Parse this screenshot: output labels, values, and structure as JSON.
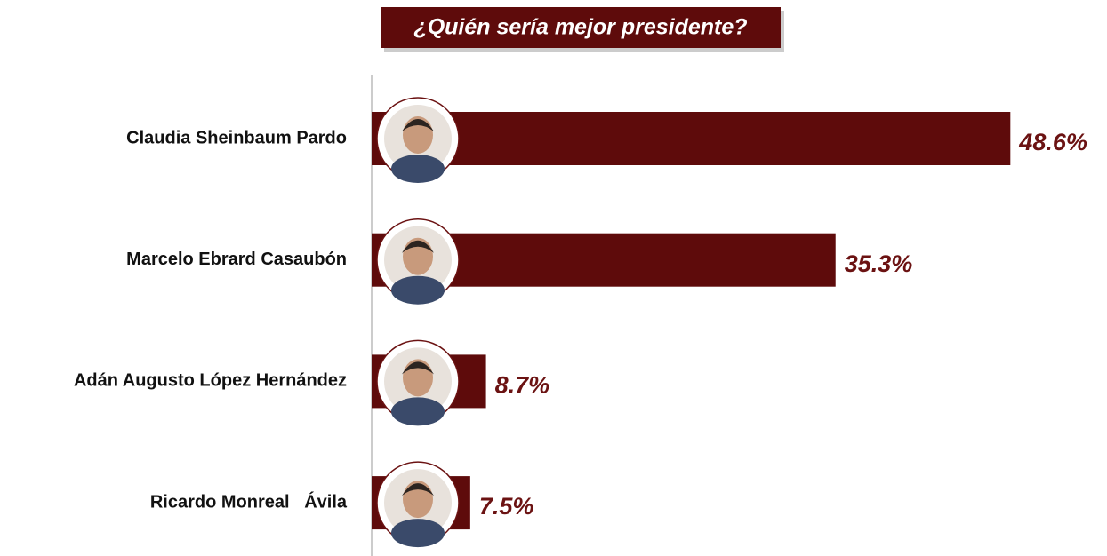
{
  "chart_data": {
    "type": "bar",
    "orientation": "horizontal",
    "title": "¿Quién sería mejor presidente?",
    "categories": [
      "Claudia Sheinbaum Pardo",
      "Marcelo Ebrard Casaubón",
      "Adán Augusto López Hernández",
      "Ricardo Monreal   Ávila"
    ],
    "values": [
      48.6,
      35.3,
      8.7,
      7.5
    ],
    "value_labels": [
      "48.6%",
      "35.3%",
      "8.7%",
      "7.5%"
    ],
    "color": "#5e0b0b",
    "xlim": [
      0,
      50
    ]
  }
}
